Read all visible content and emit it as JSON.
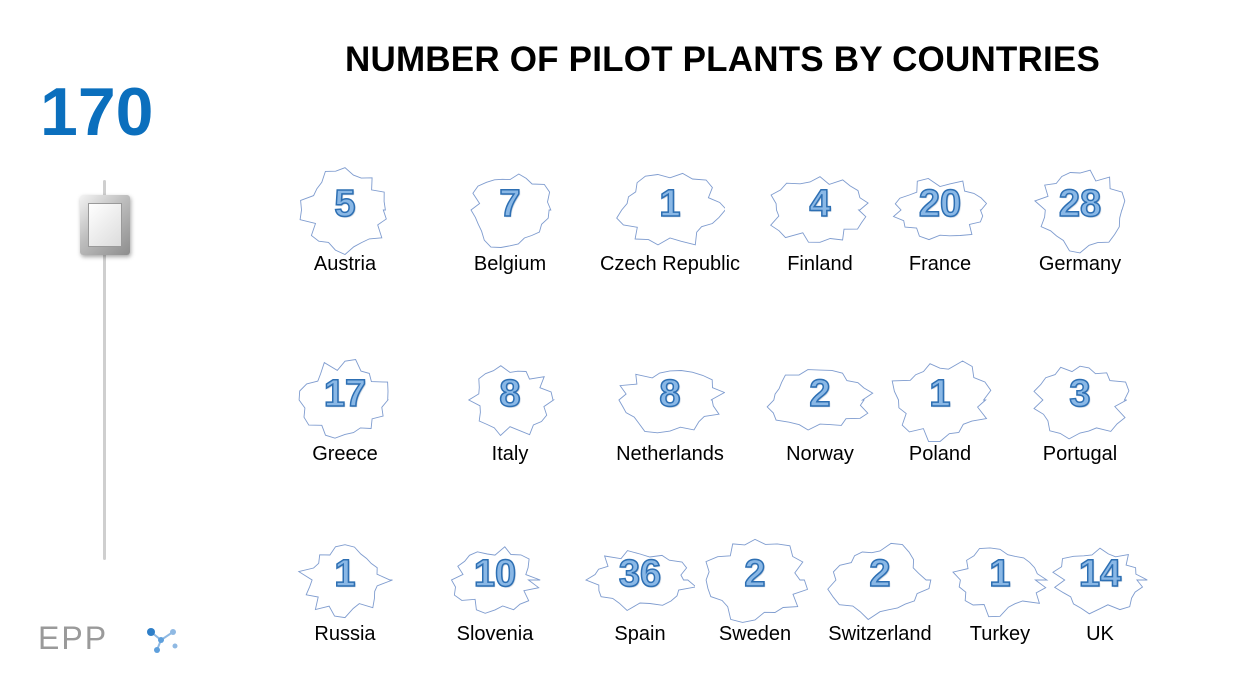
{
  "title": "NUMBER OF PILOT PLANTS BY COUNTRIES",
  "total": "170",
  "logo_text": "EPP",
  "colors": {
    "total": "#0b6fbd",
    "count_fill": "#8ab8e6",
    "count_stroke": "#2d6fb3",
    "map_outline": "#7f9ccf"
  },
  "chart_data": {
    "type": "table",
    "title": "NUMBER OF PILOT PLANTS BY COUNTRIES",
    "categories": [
      "Austria",
      "Belgium",
      "Czech Republic",
      "Finland",
      "France",
      "Germany",
      "Greece",
      "Italy",
      "Netherlands",
      "Norway",
      "Poland",
      "Portugal",
      "Russia",
      "Slovenia",
      "Spain",
      "Sweden",
      "Switzerland",
      "Turkey",
      "UK"
    ],
    "values": [
      5,
      7,
      1,
      4,
      20,
      28,
      17,
      8,
      8,
      2,
      1,
      3,
      1,
      10,
      36,
      2,
      2,
      1,
      14
    ]
  }
}
